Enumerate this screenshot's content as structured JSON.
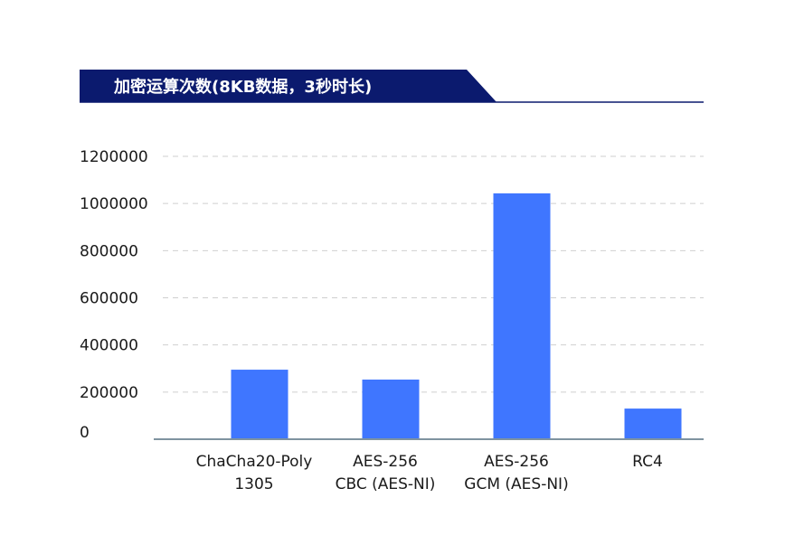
{
  "chart_data": {
    "type": "bar",
    "title": "加密运算次数(8KB数据，3秒时长)",
    "categories": [
      [
        "ChaCha20-Poly",
        "1305"
      ],
      [
        "AES-256",
        "CBC (AES-NI)"
      ],
      [
        "AES-256",
        "GCM (AES-NI)"
      ],
      [
        "RC4"
      ]
    ],
    "values": [
      295000,
      253000,
      1043000,
      130000
    ],
    "ylim": [
      0,
      1200000
    ],
    "yticks": [
      0,
      200000,
      400000,
      600000,
      800000,
      1000000,
      1200000
    ],
    "grid": true,
    "legend": "none"
  },
  "colors": {
    "bar": "#3f76ff",
    "title_band": "#0b1a6e",
    "grid": "#cfcfcf",
    "baseline": "#7f93a0"
  }
}
